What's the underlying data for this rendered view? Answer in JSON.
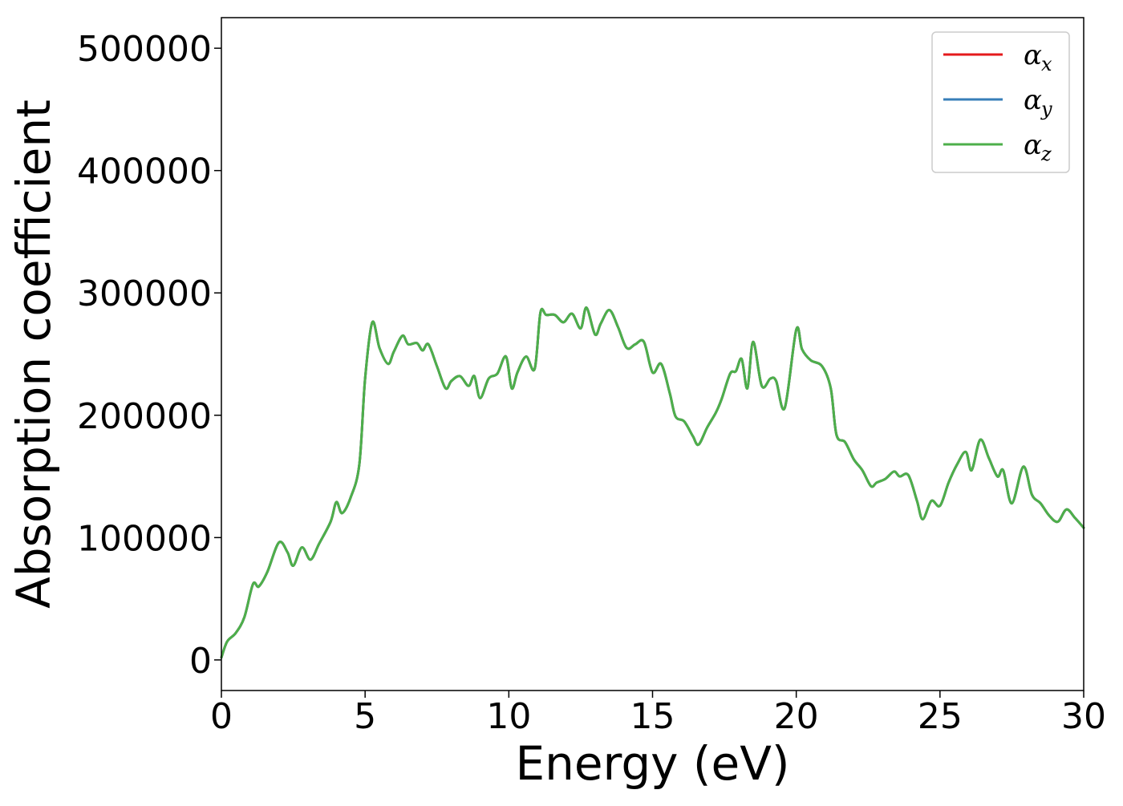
{
  "chart_data": {
    "type": "line",
    "title": "",
    "xlabel": "Energy (eV)",
    "ylabel": "Absorption coefficient",
    "xlim": [
      0,
      30
    ],
    "ylim": [
      -25000,
      525000
    ],
    "xticks": [
      0,
      5,
      10,
      15,
      20,
      25,
      30
    ],
    "yticks": [
      0,
      100000,
      200000,
      300000,
      400000,
      500000
    ],
    "grid": false,
    "legend_position": "top-right",
    "x": [
      0,
      0.2,
      0.5,
      0.8,
      1.1,
      1.3,
      1.6,
      2.0,
      2.3,
      2.5,
      2.8,
      3.1,
      3.4,
      3.8,
      4.0,
      4.2,
      4.5,
      4.8,
      5.0,
      5.25,
      5.5,
      5.8,
      6.0,
      6.3,
      6.5,
      6.8,
      7.0,
      7.2,
      7.5,
      7.8,
      8.0,
      8.3,
      8.6,
      8.8,
      9.0,
      9.3,
      9.6,
      9.9,
      10.1,
      10.3,
      10.6,
      10.9,
      11.1,
      11.3,
      11.6,
      11.9,
      12.2,
      12.5,
      12.7,
      13.0,
      13.2,
      13.5,
      13.8,
      14.1,
      14.4,
      14.7,
      15.0,
      15.3,
      15.6,
      15.8,
      16.1,
      16.4,
      16.6,
      16.9,
      17.2,
      17.4,
      17.7,
      17.9,
      18.1,
      18.3,
      18.5,
      18.8,
      19.1,
      19.3,
      19.6,
      20.0,
      20.2,
      20.5,
      20.9,
      21.2,
      21.4,
      21.7,
      22.0,
      22.3,
      22.6,
      22.8,
      23.1,
      23.4,
      23.6,
      23.9,
      24.2,
      24.4,
      24.7,
      25.0,
      25.3,
      25.6,
      25.9,
      26.1,
      26.4,
      26.7,
      27.0,
      27.2,
      27.5,
      27.9,
      28.2,
      28.5,
      28.8,
      29.1,
      29.4,
      29.7,
      30.0
    ],
    "series": [
      {
        "name": "α_x",
        "color": "#e41a1c",
        "values": [
          2000,
          15000,
          22000,
          35000,
          62000,
          60000,
          72000,
          96000,
          88000,
          77000,
          92000,
          82000,
          95000,
          113000,
          129000,
          120000,
          133000,
          160000,
          230000,
          276000,
          255000,
          242000,
          252000,
          265000,
          258000,
          259000,
          253000,
          258000,
          240000,
          222000,
          228000,
          232000,
          224000,
          232000,
          214000,
          230000,
          234000,
          248000,
          222000,
          235000,
          248000,
          238000,
          284000,
          282000,
          282000,
          276000,
          283000,
          271000,
          288000,
          266000,
          275000,
          286000,
          272000,
          255000,
          258000,
          260000,
          235000,
          242000,
          218000,
          199000,
          195000,
          183000,
          176000,
          190000,
          202000,
          213000,
          234000,
          236000,
          246000,
          222000,
          260000,
          224000,
          230000,
          228000,
          206000,
          270000,
          254000,
          245000,
          240000,
          222000,
          184000,
          178000,
          164000,
          155000,
          142000,
          145000,
          148000,
          154000,
          150000,
          151000,
          130000,
          115000,
          130000,
          126000,
          145000,
          160000,
          170000,
          155000,
          180000,
          165000,
          150000,
          155000,
          128000,
          158000,
          135000,
          128000,
          118000,
          113000,
          123000,
          116000,
          108000
        ]
      },
      {
        "name": "α_y",
        "color": "#377eb8",
        "values": [
          2000,
          15000,
          22000,
          35000,
          62000,
          60000,
          72000,
          96000,
          88000,
          77000,
          92000,
          82000,
          95000,
          113000,
          129000,
          120000,
          133000,
          160000,
          230000,
          276000,
          255000,
          242000,
          252000,
          265000,
          258000,
          259000,
          253000,
          258000,
          240000,
          222000,
          228000,
          232000,
          224000,
          232000,
          214000,
          230000,
          234000,
          248000,
          222000,
          235000,
          248000,
          238000,
          284000,
          282000,
          282000,
          276000,
          283000,
          271000,
          288000,
          266000,
          275000,
          286000,
          272000,
          255000,
          258000,
          260000,
          235000,
          242000,
          218000,
          199000,
          195000,
          183000,
          176000,
          190000,
          202000,
          213000,
          234000,
          236000,
          246000,
          222000,
          260000,
          224000,
          230000,
          228000,
          206000,
          270000,
          254000,
          245000,
          240000,
          222000,
          184000,
          178000,
          164000,
          155000,
          142000,
          145000,
          148000,
          154000,
          150000,
          151000,
          130000,
          115000,
          130000,
          126000,
          145000,
          160000,
          170000,
          155000,
          180000,
          165000,
          150000,
          155000,
          128000,
          158000,
          135000,
          128000,
          118000,
          113000,
          123000,
          116000,
          108000
        ]
      },
      {
        "name": "α_z",
        "color": "#4daf4a",
        "values": [
          2000,
          15000,
          22000,
          35000,
          62000,
          60000,
          72000,
          96000,
          88000,
          77000,
          92000,
          82000,
          95000,
          113000,
          129000,
          120000,
          133000,
          160000,
          230000,
          276000,
          255000,
          242000,
          252000,
          265000,
          258000,
          259000,
          253000,
          258000,
          240000,
          222000,
          228000,
          232000,
          224000,
          232000,
          214000,
          230000,
          234000,
          248000,
          222000,
          235000,
          248000,
          238000,
          284000,
          282000,
          282000,
          276000,
          283000,
          271000,
          288000,
          266000,
          275000,
          286000,
          272000,
          255000,
          258000,
          260000,
          235000,
          242000,
          218000,
          199000,
          195000,
          183000,
          176000,
          190000,
          202000,
          213000,
          234000,
          236000,
          246000,
          222000,
          260000,
          224000,
          230000,
          228000,
          206000,
          270000,
          254000,
          245000,
          240000,
          222000,
          184000,
          178000,
          164000,
          155000,
          142000,
          145000,
          148000,
          154000,
          150000,
          151000,
          130000,
          115000,
          130000,
          126000,
          145000,
          160000,
          170000,
          155000,
          180000,
          165000,
          150000,
          155000,
          128000,
          158000,
          135000,
          128000,
          118000,
          113000,
          123000,
          116000,
          108000
        ]
      }
    ],
    "legend": [
      {
        "symbol": "α",
        "subscript": "x"
      },
      {
        "symbol": "α",
        "subscript": "y"
      },
      {
        "symbol": "α",
        "subscript": "z"
      }
    ]
  }
}
